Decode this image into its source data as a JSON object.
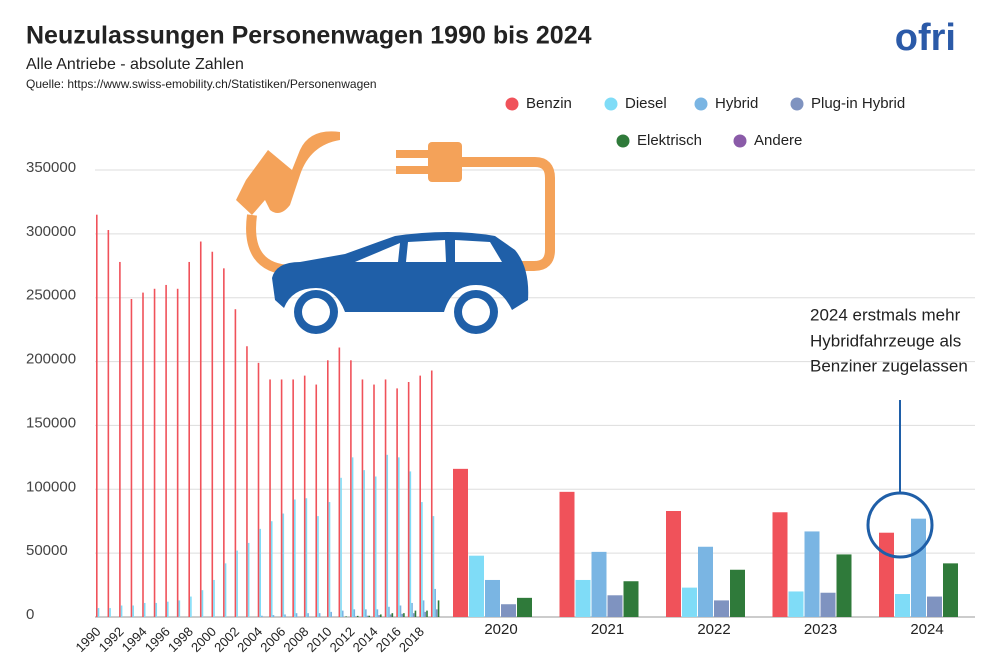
{
  "chart_data": {
    "type": "bar",
    "title": "Neuzulassungen Personenwagen 1990 bis 2024",
    "subtitle": "Alle Antriebe - absolute Zahlen",
    "source": "Quelle: https://www.swiss-emobility.ch/Statistiken/Personenwagen",
    "logo": "ofri",
    "annotation": [
      "2024 erstmals mehr",
      "Hybridfahrzeuge als",
      "Benziner zugelassen"
    ],
    "categories": [
      "1990",
      null,
      "1992",
      null,
      "1994",
      null,
      "1996",
      null,
      "1998",
      null,
      "2000",
      null,
      "2002",
      null,
      "2004",
      null,
      "2006",
      null,
      "2008",
      null,
      "2010",
      null,
      "2012",
      null,
      "2014",
      null,
      "2016",
      null,
      "2018",
      null,
      "2020",
      "2021",
      "2022",
      "2023",
      "2024"
    ],
    "ylim": [
      0,
      350000
    ],
    "yticks": [
      0,
      50000,
      100000,
      150000,
      200000,
      250000,
      300000,
      350000
    ],
    "grid": true,
    "series": [
      {
        "name": "Benzin",
        "color": "#f0525a",
        "values": [
          315000,
          303000,
          278000,
          249000,
          254000,
          257000,
          260000,
          257000,
          278000,
          294000,
          286000,
          273000,
          241000,
          212000,
          199000,
          186000,
          186000,
          186000,
          189000,
          182000,
          201000,
          211000,
          201000,
          186000,
          182000,
          186000,
          179000,
          184000,
          189000,
          193000,
          116000,
          98000,
          83000,
          82000,
          66000
        ]
      },
      {
        "name": "Diesel",
        "color": "#7fdcf7",
        "values": [
          7000,
          7000,
          9000,
          9000,
          11000,
          11000,
          12000,
          13000,
          16000,
          21000,
          29000,
          42000,
          52000,
          58000,
          69000,
          75000,
          81000,
          92000,
          93000,
          79000,
          90000,
          109000,
          125000,
          115000,
          110000,
          127000,
          125000,
          114000,
          90000,
          79000,
          48000,
          29000,
          23000,
          20000,
          18000
        ]
      },
      {
        "name": "Hybrid",
        "color": "#7ab5e3",
        "values": [
          0,
          0,
          0,
          0,
          0,
          0,
          0,
          0,
          0,
          0,
          0,
          0,
          0,
          0,
          1000,
          1500,
          2000,
          3000,
          3000,
          3000,
          4000,
          5000,
          6000,
          6000,
          6000,
          8000,
          9000,
          11000,
          13000,
          22000,
          29000,
          51000,
          55000,
          67000,
          77000
        ]
      },
      {
        "name": "Plug-in Hybrid",
        "color": "#7f93c0",
        "values": [
          0,
          0,
          0,
          0,
          0,
          0,
          0,
          0,
          0,
          0,
          0,
          0,
          0,
          0,
          0,
          0,
          0,
          0,
          0,
          0,
          0,
          0,
          500,
          1000,
          1500,
          2000,
          2500,
          3000,
          4000,
          6000,
          10000,
          17000,
          13000,
          19000,
          16000
        ]
      },
      {
        "name": "Elektrisch",
        "color": "#2f7a3a",
        "values": [
          0,
          0,
          0,
          0,
          0,
          0,
          0,
          0,
          0,
          0,
          0,
          0,
          0,
          0,
          0,
          0,
          0,
          0,
          0,
          0,
          0,
          500,
          900,
          1000,
          2000,
          3000,
          3000,
          5000,
          5000,
          13000,
          15000,
          28000,
          37000,
          49000,
          42000
        ]
      },
      {
        "name": "Andere",
        "color": "#8a5ba8",
        "values": [
          0,
          0,
          0,
          0,
          0,
          0,
          0,
          0,
          0,
          0,
          0,
          0,
          0,
          0,
          0,
          0,
          0,
          0,
          0,
          0,
          0,
          0,
          0,
          0,
          0,
          0,
          0,
          0,
          0,
          0,
          0,
          0,
          0,
          0,
          0
        ]
      }
    ]
  }
}
